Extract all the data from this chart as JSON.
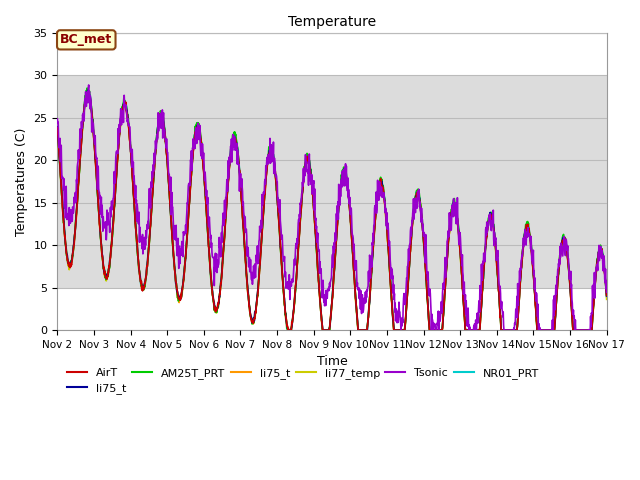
{
  "title": "Temperature",
  "xlabel": "Time",
  "ylabel": "Temperatures (C)",
  "ylim": [
    0,
    35
  ],
  "xlim": [
    0,
    360
  ],
  "background_color": "#ffffff",
  "plot_bg_color": "#ffffff",
  "shaded_color": "#dcdcdc",
  "series_colors": {
    "AirT": "#cc0000",
    "li75_t_blue": "#000099",
    "AM25T_PRT": "#00cc00",
    "li75_t_orange": "#ff9900",
    "li77_temp": "#cccc00",
    "Tsonic": "#9900cc",
    "NR01_PRT": "#00cccc"
  },
  "legend_entries": [
    "AirT",
    "li75_t",
    "AM25T_PRT",
    "li75_t",
    "li77_temp",
    "Tsonic",
    "NR01_PRT"
  ],
  "legend_colors": [
    "#cc0000",
    "#000099",
    "#00cc00",
    "#ff9900",
    "#cccc00",
    "#9900cc",
    "#00cccc"
  ],
  "xtick_labels": [
    "Nov 2",
    "Nov 3",
    "Nov 4",
    "Nov 5",
    "Nov 6",
    "Nov 7",
    "Nov 8",
    "Nov 9",
    "Nov 10",
    "Nov 11",
    "Nov 12",
    "Nov 13",
    "Nov 14",
    "Nov 15",
    "Nov 16",
    "Nov 17"
  ],
  "xtick_positions": [
    0,
    24,
    48,
    72,
    96,
    120,
    144,
    168,
    192,
    216,
    240,
    264,
    288,
    312,
    336,
    360
  ],
  "ytick_labels": [
    "0",
    "5",
    "10",
    "15",
    "20",
    "25",
    "30",
    "35"
  ],
  "ytick_positions": [
    0,
    5,
    10,
    15,
    20,
    25,
    30,
    35
  ],
  "shaded_ymin": 5,
  "shaded_ymax": 30,
  "annotation_text": "BC_met",
  "figsize": [
    6.4,
    4.8
  ],
  "dpi": 100
}
